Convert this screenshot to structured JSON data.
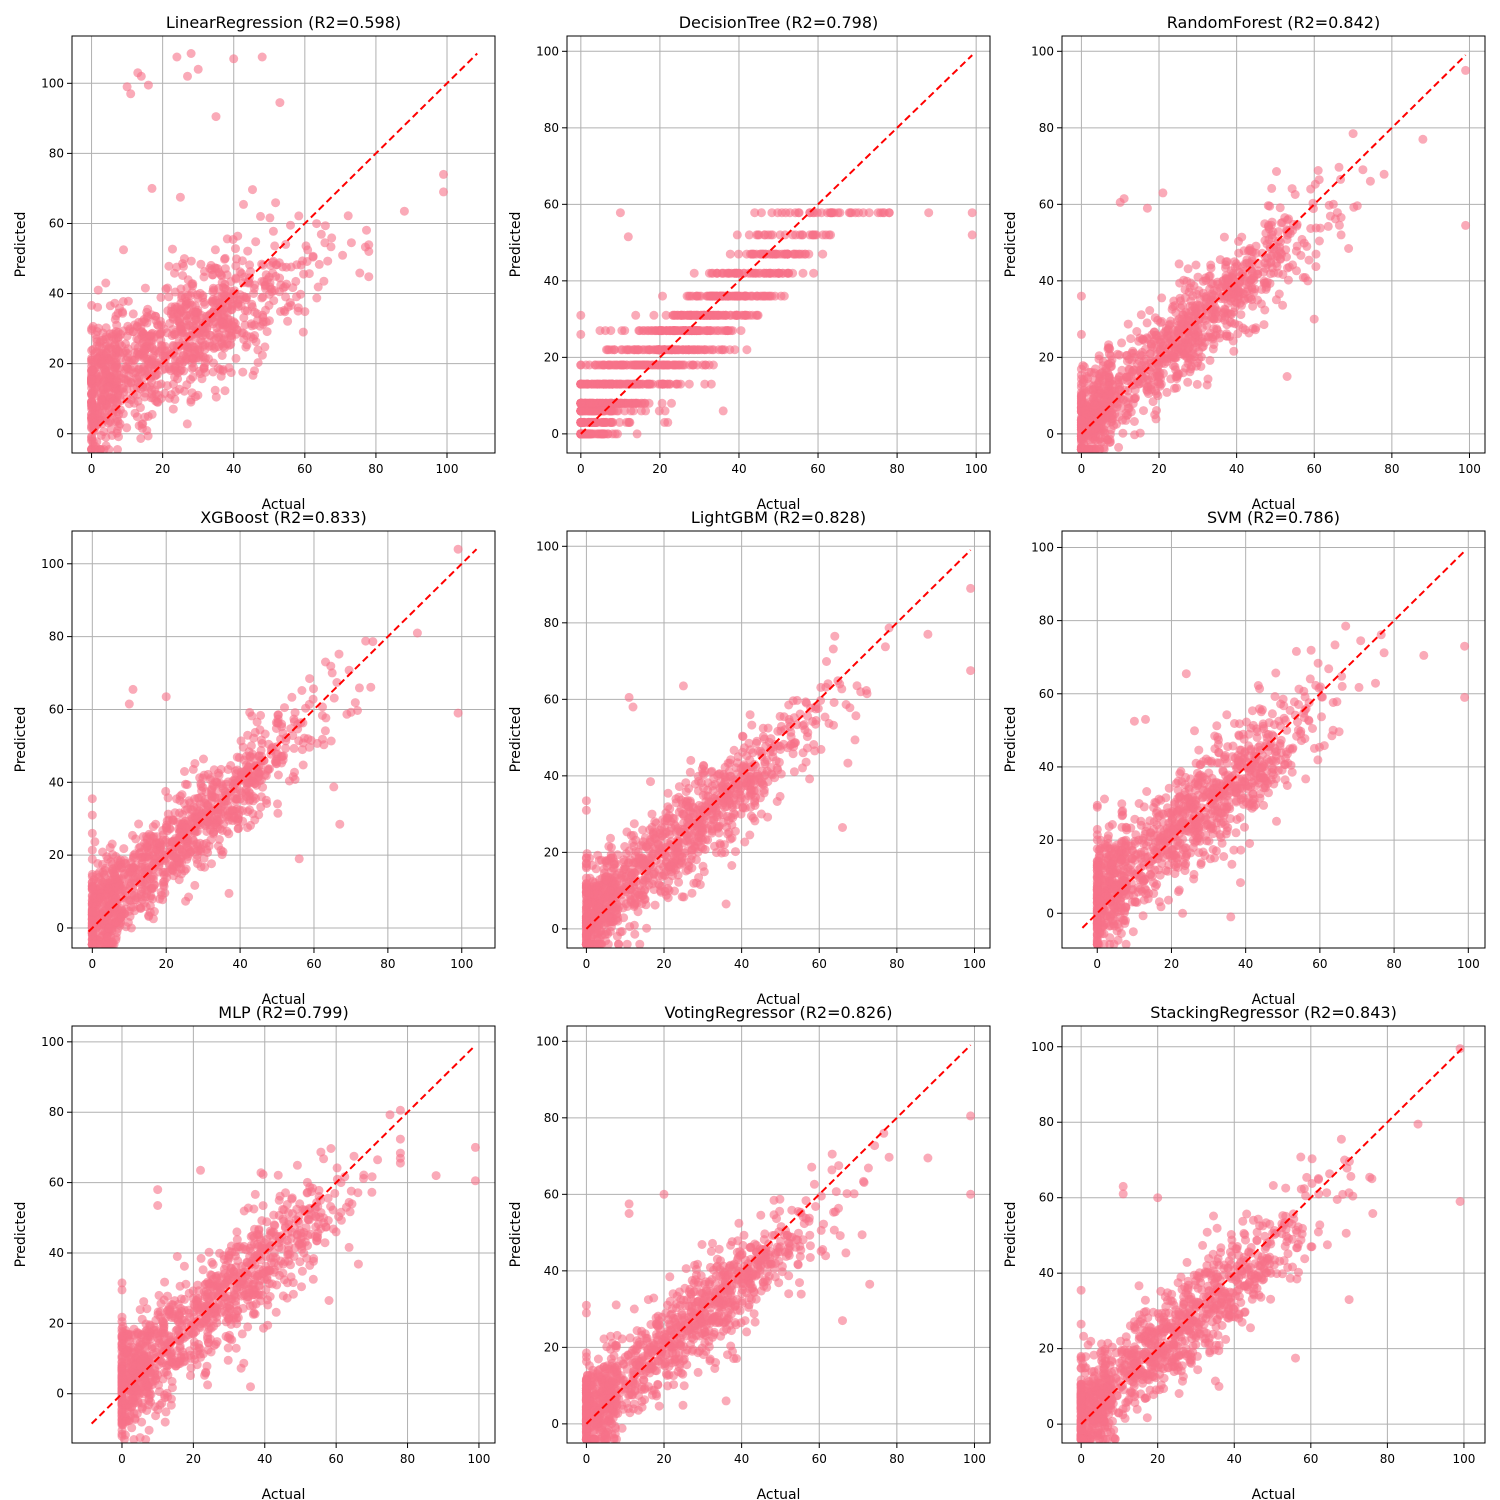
{
  "style": {
    "point_color": "#f77189",
    "point_alpha": 0.6,
    "line_color": "#ff0000",
    "grid_color": "#b0b0b0"
  },
  "chart_data": [
    {
      "type": "scatter",
      "title": "LinearRegression (R2=0.598)",
      "xlabel": "Actual",
      "ylabel": "Predicted",
      "grid": true,
      "xlim": [
        -5.5,
        113.5
      ],
      "ylim": [
        -5.5,
        113.5
      ],
      "xticks": [
        0,
        20,
        40,
        60,
        80,
        100
      ],
      "yticks": [
        0,
        20,
        40,
        60,
        80,
        100
      ],
      "diagonal": [
        0,
        108.5
      ],
      "spread": 9.0,
      "slope": 0.6,
      "intercept": 12,
      "seed": 11,
      "outliers": [
        [
          10,
          99
        ],
        [
          11,
          97
        ],
        [
          13,
          103
        ],
        [
          14,
          102
        ],
        [
          16,
          99.5
        ],
        [
          17,
          70
        ],
        [
          24,
          107.5
        ],
        [
          25,
          67.5
        ],
        [
          27,
          102
        ],
        [
          28,
          108.5
        ],
        [
          30,
          104
        ],
        [
          35,
          90.5
        ],
        [
          40,
          107
        ],
        [
          48,
          107.5
        ],
        [
          53,
          94.5
        ],
        [
          99,
          74
        ],
        [
          99,
          69
        ],
        [
          88,
          63.5
        ],
        [
          0,
          30
        ],
        [
          0,
          29.5
        ],
        [
          9,
          52.5
        ],
        [
          4,
          43
        ]
      ]
    },
    {
      "type": "scatter",
      "title": "DecisionTree (R2=0.798)",
      "xlabel": "Actual",
      "ylabel": "Predicted",
      "grid": true,
      "xlim": [
        -3.5,
        103.5
      ],
      "ylim": [
        -5,
        104
      ],
      "xticks": [
        0,
        20,
        40,
        60,
        80,
        100
      ],
      "yticks": [
        0,
        20,
        40,
        60,
        80,
        100
      ],
      "diagonal": [
        0,
        99
      ],
      "spread": 6.0,
      "slope": 0.85,
      "intercept": 3,
      "seed": 23,
      "steps": [
        0,
        3,
        6,
        8,
        13,
        18,
        22,
        27,
        31,
        36,
        42,
        47,
        52,
        57.8
      ],
      "outliers": [
        [
          99,
          57.8
        ],
        [
          99,
          52
        ],
        [
          88,
          57.8
        ],
        [
          0,
          31
        ],
        [
          0,
          26
        ],
        [
          10,
          57.8
        ],
        [
          12,
          51.5
        ],
        [
          36,
          6
        ],
        [
          22,
          3
        ]
      ]
    },
    {
      "type": "scatter",
      "title": "RandomForest (R2=0.842)",
      "xlabel": "Actual",
      "ylabel": "Predicted",
      "grid": true,
      "xlim": [
        -5,
        104
      ],
      "ylim": [
        -5,
        104
      ],
      "xticks": [
        0,
        20,
        40,
        60,
        80,
        100
      ],
      "yticks": [
        0,
        20,
        40,
        60,
        80,
        100
      ],
      "diagonal": [
        0,
        99
      ],
      "spread": 6.5,
      "slope": 0.88,
      "intercept": 2.5,
      "seed": 37,
      "outliers": [
        [
          99,
          95
        ],
        [
          99,
          54.5
        ],
        [
          88,
          77
        ],
        [
          0,
          36
        ],
        [
          0,
          26
        ],
        [
          11,
          61.5
        ],
        [
          10,
          60.5
        ],
        [
          21,
          63
        ],
        [
          17,
          59
        ],
        [
          53,
          15
        ],
        [
          60,
          30
        ],
        [
          70,
          78.5
        ]
      ]
    },
    {
      "type": "scatter",
      "title": "XGBoost (R2=0.833)",
      "xlabel": "Actual",
      "ylabel": "Predicted",
      "grid": true,
      "xlim": [
        -5.5,
        109
      ],
      "ylim": [
        -5.5,
        109
      ],
      "xticks": [
        0,
        20,
        40,
        60,
        80,
        100
      ],
      "yticks": [
        0,
        20,
        40,
        60,
        80,
        100
      ],
      "diagonal": [
        -1,
        104
      ],
      "spread": 6.5,
      "slope": 0.88,
      "intercept": 2.5,
      "seed": 41,
      "outliers": [
        [
          99,
          104
        ],
        [
          99,
          59
        ],
        [
          88,
          81
        ],
        [
          0,
          35.5
        ],
        [
          0,
          31
        ],
        [
          0,
          26
        ],
        [
          11,
          65.5
        ],
        [
          10,
          61.5
        ],
        [
          20,
          63.5
        ],
        [
          37,
          9.5
        ],
        [
          56,
          19
        ],
        [
          67,
          28.5
        ]
      ]
    },
    {
      "type": "scatter",
      "title": "LightGBM (R2=0.828)",
      "xlabel": "Actual",
      "ylabel": "Predicted",
      "grid": true,
      "xlim": [
        -5,
        104
      ],
      "ylim": [
        -5,
        104
      ],
      "xticks": [
        0,
        20,
        40,
        60,
        80,
        100
      ],
      "yticks": [
        0,
        20,
        40,
        60,
        80,
        100
      ],
      "diagonal": [
        0,
        99
      ],
      "spread": 6.5,
      "slope": 0.88,
      "intercept": 2.5,
      "seed": 53,
      "outliers": [
        [
          99,
          89
        ],
        [
          99,
          67.5
        ],
        [
          88,
          77
        ],
        [
          0,
          33.5
        ],
        [
          0,
          31
        ],
        [
          11,
          60.5
        ],
        [
          12,
          58
        ],
        [
          25,
          63.5
        ],
        [
          36,
          6.5
        ],
        [
          64,
          76.5
        ],
        [
          66,
          26.5
        ]
      ]
    },
    {
      "type": "scatter",
      "title": "SVM (R2=0.786)",
      "xlabel": "Actual",
      "ylabel": "Predicted",
      "grid": true,
      "xlim": [
        -9.5,
        104.5
      ],
      "ylim": [
        -9.5,
        104.5
      ],
      "xticks": [
        0,
        20,
        40,
        60,
        80,
        100
      ],
      "yticks": [
        0,
        20,
        40,
        60,
        80,
        100
      ],
      "diagonal": [
        -4,
        99
      ],
      "spread": 7.5,
      "slope": 0.85,
      "intercept": 4,
      "seed": 67,
      "outliers": [
        [
          99,
          73
        ],
        [
          99,
          59
        ],
        [
          88,
          70.5
        ],
        [
          0,
          -4
        ],
        [
          0,
          29.5
        ],
        [
          0,
          29
        ],
        [
          13,
          53
        ],
        [
          10,
          52.5
        ],
        [
          24,
          65.5
        ],
        [
          36,
          -1
        ],
        [
          23,
          0
        ],
        [
          71,
          74.5
        ]
      ]
    },
    {
      "type": "scatter",
      "title": "MLP (R2=0.799)",
      "xlabel": "Actual",
      "ylabel": "Predicted",
      "grid": true,
      "xlim": [
        -14,
        104.5
      ],
      "ylim": [
        -14,
        104.5
      ],
      "xticks": [
        0,
        20,
        40,
        60,
        80,
        100
      ],
      "yticks": [
        0,
        20,
        40,
        60,
        80,
        100
      ],
      "diagonal": [
        -8.5,
        99
      ],
      "spread": 7.5,
      "slope": 0.85,
      "intercept": 3,
      "seed": 79,
      "outliers": [
        [
          99,
          70
        ],
        [
          99,
          60.5
        ],
        [
          88,
          62
        ],
        [
          0,
          -8.5
        ],
        [
          0,
          31.5
        ],
        [
          0,
          29.5
        ],
        [
          10,
          58
        ],
        [
          10,
          53.5
        ],
        [
          22,
          63.5
        ],
        [
          36,
          2
        ],
        [
          24,
          2.5
        ],
        [
          65,
          67.5
        ],
        [
          58,
          26.5
        ]
      ]
    },
    {
      "type": "scatter",
      "title": "VotingRegressor (R2=0.826)",
      "xlabel": "Actual",
      "ylabel": "Predicted",
      "grid": true,
      "xlim": [
        -5,
        104
      ],
      "ylim": [
        -5,
        104
      ],
      "xticks": [
        0,
        20,
        40,
        60,
        80,
        100
      ],
      "yticks": [
        0,
        20,
        40,
        60,
        80,
        100
      ],
      "diagonal": [
        0,
        99
      ],
      "spread": 6.5,
      "slope": 0.86,
      "intercept": 3,
      "seed": 97,
      "outliers": [
        [
          99,
          80.5
        ],
        [
          99,
          60
        ],
        [
          88,
          69.5
        ],
        [
          0,
          31
        ],
        [
          0,
          29
        ],
        [
          11,
          57.5
        ],
        [
          11,
          55
        ],
        [
          20,
          60
        ],
        [
          36,
          6
        ],
        [
          65,
          67.5
        ],
        [
          73,
          36.5
        ],
        [
          66,
          27
        ]
      ]
    },
    {
      "type": "scatter",
      "title": "StackingRegressor (R2=0.843)",
      "xlabel": "Actual",
      "ylabel": "Predicted",
      "grid": true,
      "xlim": [
        -5,
        105.5
      ],
      "ylim": [
        -5,
        105.5
      ],
      "xticks": [
        0,
        20,
        40,
        60,
        80,
        100
      ],
      "yticks": [
        0,
        20,
        40,
        60,
        80,
        100
      ],
      "diagonal": [
        0,
        99.5
      ],
      "spread": 6.5,
      "slope": 0.88,
      "intercept": 2.5,
      "seed": 101,
      "outliers": [
        [
          99,
          99.5
        ],
        [
          99,
          59
        ],
        [
          88,
          79.5
        ],
        [
          0,
          35.5
        ],
        [
          0,
          26.5
        ],
        [
          11,
          63
        ],
        [
          11,
          61
        ],
        [
          20,
          60
        ],
        [
          36,
          10
        ],
        [
          68,
          75.5
        ],
        [
          70,
          33
        ],
        [
          56,
          17.5
        ]
      ]
    }
  ]
}
